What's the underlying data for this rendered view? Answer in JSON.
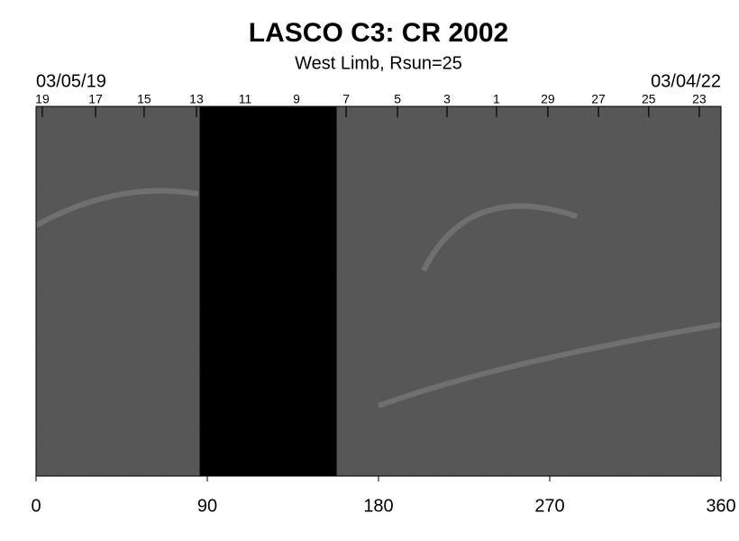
{
  "chart_data": {
    "type": "synoptic-map",
    "title": "LASCO C3: CR 2002",
    "subtitle": "West Limb, Rsun=25",
    "start_date": "03/05/19",
    "end_date": "03/04/22",
    "xlim": [
      0,
      360
    ],
    "xticks": [
      0,
      90,
      180,
      270,
      360
    ],
    "top_ticks": [
      {
        "value": 3.3,
        "label": "19"
      },
      {
        "value": 31.3,
        "label": "17"
      },
      {
        "value": 56.8,
        "label": "15"
      },
      {
        "value": 84.3,
        "label": "13"
      },
      {
        "value": 109.9,
        "label": "11"
      },
      {
        "value": 136.9,
        "label": "9"
      },
      {
        "value": 163,
        "label": "7"
      },
      {
        "value": 190,
        "label": "5"
      },
      {
        "value": 216,
        "label": "3"
      },
      {
        "value": 242,
        "label": "1"
      },
      {
        "value": 269,
        "label": "29"
      },
      {
        "value": 295.6,
        "label": "27"
      },
      {
        "value": 322,
        "label": "25"
      },
      {
        "value": 348.6,
        "label": "23"
      }
    ],
    "missing_xrange": [
      86,
      158
    ],
    "background_color": "#5b5b5b",
    "missing_color": "#000000"
  }
}
